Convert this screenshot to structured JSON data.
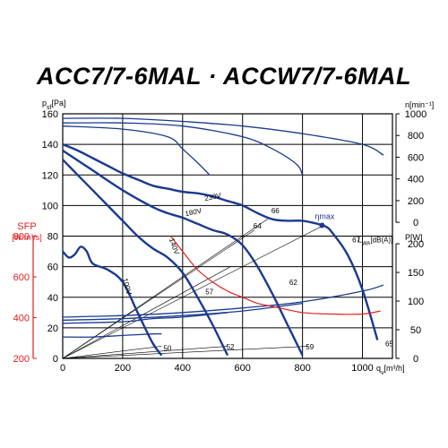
{
  "title": "ACC7/7-6MAL · ACCW7/7-6MAL",
  "chart_data": {
    "type": "line",
    "axes": {
      "x": {
        "label_main": "q",
        "label_sub": "v",
        "unit": "[m³/h]",
        "range": [
          0,
          1100
        ],
        "ticks": [
          "0",
          "200",
          "400",
          "600",
          "800",
          "1000"
        ]
      },
      "y_left": {
        "label_main": "p",
        "label_sub": "sf",
        "unit": "[Pa]",
        "range": [
          0,
          160
        ],
        "ticks": [
          "0",
          "20",
          "40",
          "60",
          "80",
          "100",
          "120",
          "140",
          "160"
        ]
      },
      "y_sfp": {
        "label": "SFP",
        "unit": "[W/m³/s]",
        "range": [
          200,
          800
        ],
        "color": "#e02020",
        "ticks": [
          "200",
          "400",
          "600",
          "800"
        ]
      },
      "y_speed": {
        "label_main": "n",
        "unit": "[min⁻¹]",
        "range": [
          0,
          1000
        ],
        "ticks": [
          "0",
          "200",
          "400",
          "600",
          "800",
          "1000"
        ]
      },
      "y_power": {
        "label_main": "P",
        "unit": "[W]",
        "range": [
          0,
          200
        ],
        "ticks": [
          "0",
          "50",
          "100",
          "150",
          "200"
        ]
      }
    },
    "grid": true,
    "colors": {
      "curves": "#1a3a8f",
      "sfp": "#e02020",
      "grid": "#000000",
      "guides": "#000000"
    },
    "pressure_curves": [
      {
        "voltage": "230V",
        "label": "230V",
        "x": [
          0,
          50,
          100,
          150,
          200,
          250,
          300,
          350,
          400,
          450,
          500,
          550,
          600,
          650,
          700,
          750,
          800,
          850,
          880,
          900,
          950,
          1000,
          1050
        ],
        "y": [
          140,
          136,
          131,
          126,
          121,
          117,
          113,
          111,
          109,
          108,
          106,
          103,
          100,
          95,
          91,
          90,
          90,
          88,
          86,
          82,
          68,
          45,
          12
        ]
      },
      {
        "voltage": "180V",
        "label": "180V",
        "x": [
          0,
          100,
          200,
          300,
          350,
          400,
          450,
          500,
          550,
          600,
          650,
          700,
          750,
          800
        ],
        "y": [
          136,
          123,
          110,
          99,
          95,
          92,
          88,
          84,
          81,
          74,
          60,
          42,
          22,
          2
        ]
      },
      {
        "voltage": "140V",
        "label": "140V",
        "x": [
          0,
          50,
          100,
          150,
          200,
          250,
          300,
          350,
          400,
          450,
          500,
          550
        ],
        "y": [
          130,
          120,
          110,
          100,
          90,
          80,
          72,
          66,
          56,
          40,
          22,
          2
        ]
      },
      {
        "voltage": "100V",
        "label": "100V",
        "x": [
          0,
          20,
          40,
          60,
          80,
          100,
          150,
          200,
          250,
          300,
          330
        ],
        "y": [
          70,
          66,
          68,
          73,
          70,
          62,
          58,
          50,
          30,
          10,
          2
        ]
      }
    ],
    "speed_curves_top": [
      {
        "x": [
          0,
          200,
          400,
          600,
          800,
          1000,
          1070
        ],
        "y": [
          157,
          157,
          155,
          152,
          147,
          140,
          133
        ]
      },
      {
        "x": [
          0,
          200,
          400,
          600,
          700,
          780,
          800
        ],
        "y": [
          154,
          154,
          152,
          145,
          137,
          127,
          120
        ]
      },
      {
        "x": [
          0,
          200,
          350,
          400,
          450,
          490
        ],
        "y": [
          152,
          150,
          145,
          137,
          128,
          120
        ]
      }
    ],
    "power_curves_bottom": [
      {
        "x": [
          0,
          200,
          400,
          600,
          800,
          1000,
          1070
        ],
        "y": [
          27,
          28,
          30,
          33,
          37,
          44,
          48
        ]
      },
      {
        "x": [
          0,
          200,
          400,
          600,
          800
        ],
        "y": [
          25,
          26,
          28,
          31,
          36
        ]
      },
      {
        "x": [
          0,
          200,
          300,
          400,
          550
        ],
        "y": [
          23,
          24,
          26,
          27,
          30
        ]
      },
      {
        "x": [
          0,
          100,
          200,
          300,
          330
        ],
        "y": [
          14,
          14,
          15,
          16,
          16
        ]
      }
    ],
    "sfp_curve": {
      "x": [
        360,
        400,
        450,
        500,
        550,
        600,
        650,
        700,
        800,
        900,
        1000,
        1060
      ],
      "y": [
        80,
        70,
        58,
        50,
        44,
        40,
        36,
        34,
        30,
        29,
        29,
        31
      ]
    },
    "efficiency_labels": [
      {
        "label": "50",
        "x": 330,
        "y": 5
      },
      {
        "label": "57",
        "x": 470,
        "y": 42
      },
      {
        "label": "52",
        "x": 540,
        "y": 6
      },
      {
        "label": "64",
        "x": 630,
        "y": 85
      },
      {
        "label": "66",
        "x": 690,
        "y": 95
      },
      {
        "label": "62",
        "x": 750,
        "y": 48
      },
      {
        "label": "59",
        "x": 805,
        "y": 6
      },
      {
        "label": "67",
        "x": 960,
        "y": 76
      },
      {
        "label": "65",
        "x": 1070,
        "y": 8
      }
    ],
    "efficiency_guides": [
      {
        "x": [
          0,
          860
        ],
        "y": [
          0,
          86
        ]
      },
      {
        "x": [
          0,
          690
        ],
        "y": [
          0,
          92
        ]
      },
      {
        "x": [
          0,
          640
        ],
        "y": [
          0,
          84
        ]
      },
      {
        "x": [
          0,
          560
        ],
        "y": [
          0,
          60
        ]
      },
      {
        "x": [
          0,
          330
        ],
        "y": [
          0,
          8
        ]
      },
      {
        "x": [
          0,
          550
        ],
        "y": [
          0,
          8
        ]
      },
      {
        "x": [
          0,
          820
        ],
        "y": [
          0,
          8
        ]
      }
    ],
    "eta_max": {
      "label": "ηmax",
      "x": 865,
      "y": 87
    },
    "lwa_label": "L",
    "lwa_sub": "WA",
    "lwa_unit": "[dB(A)]",
    "lwa_point": {
      "x": 1000,
      "y": 76
    }
  }
}
